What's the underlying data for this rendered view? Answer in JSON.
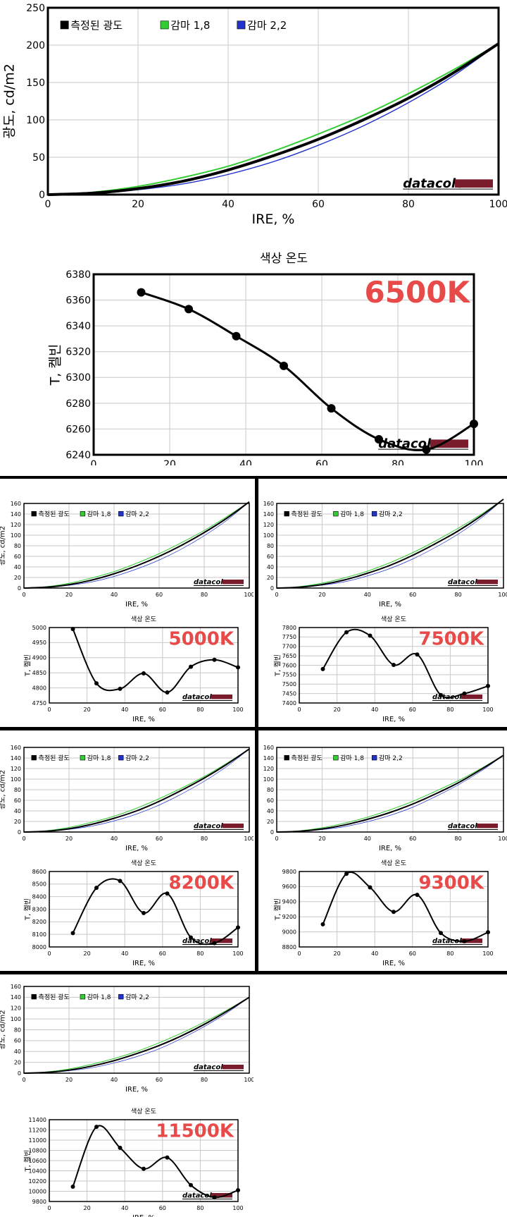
{
  "big_gamma": {
    "legend": [
      "측정된 광도",
      "감마 1,8",
      "감마 2,2"
    ],
    "ylabel": "광도, cd/m2",
    "xlabel": "IRE, %",
    "xticks": [
      "0",
      "20",
      "40",
      "60",
      "80",
      "100"
    ],
    "yticks": [
      "0",
      "50",
      "100",
      "150",
      "200",
      "250"
    ],
    "ymax": 250,
    "ypeak": 202,
    "logo": "datacolor"
  },
  "big_temp": {
    "title": "색상 온도",
    "ylabel": "T, 켈빈",
    "xlabel": "IRE, %",
    "label": "6500K",
    "xticks": [
      "0",
      "20",
      "40",
      "60",
      "80",
      "100"
    ],
    "yticks": [
      "6240",
      "6260",
      "6280",
      "6300",
      "6320",
      "6340",
      "6360",
      "6380"
    ],
    "ymin": 6240,
    "ymax": 6380,
    "logo": "datacolor"
  },
  "small_panels": [
    {
      "gamma": {
        "legend": [
          "측정된 광도",
          "감마 1,8",
          "감마 2,2"
        ],
        "ylabel": "광도, cd/m2",
        "xlabel": "IRE, %",
        "xticks": [
          "0",
          "20",
          "40",
          "60",
          "80",
          "100"
        ],
        "yticks": [
          "0",
          "20",
          "40",
          "60",
          "80",
          "100",
          "120",
          "140",
          "160"
        ],
        "ymax": 160,
        "ypeak": 163,
        "logo": "datacolor"
      },
      "temp": {
        "title": "색상 온도",
        "ylabel": "T, 켈빈",
        "xlabel": "IRE, %",
        "label": "5000K",
        "xticks": [
          "0",
          "20",
          "40",
          "60",
          "80",
          "100"
        ],
        "yticks": [
          "4750",
          "4800",
          "4850",
          "4900",
          "4950",
          "5000"
        ],
        "ymin": 4750,
        "ymax": 5000,
        "logo": "datacolor"
      }
    },
    {
      "gamma": {
        "legend": [
          "측정된 광도",
          "감마 1,8",
          "감마 2,2"
        ],
        "ylabel": "광도, cd/m2",
        "xlabel": "IRE, %",
        "xticks": [
          "0",
          "20",
          "40",
          "60",
          "80",
          "100"
        ],
        "yticks": [
          "0",
          "20",
          "40",
          "60",
          "80",
          "100",
          "120",
          "140",
          "160"
        ],
        "ymax": 160,
        "ypeak": 168,
        "logo": "datacolor"
      },
      "temp": {
        "title": "색상 온도",
        "ylabel": "T, 켈빈",
        "xlabel": "IRE, %",
        "label": "7500K",
        "xticks": [
          "0",
          "20",
          "40",
          "60",
          "80",
          "100"
        ],
        "yticks": [
          "7400",
          "7450",
          "7500",
          "7550",
          "7600",
          "7650",
          "7700",
          "7750",
          "7800"
        ],
        "ymin": 7400,
        "ymax": 7800,
        "logo": "datacolor"
      }
    },
    {
      "gamma": {
        "legend": [
          "측정된 광도",
          "감마 1,8",
          "감마 2,2"
        ],
        "ylabel": "광도, cd/m2",
        "xlabel": "IRE, %",
        "xticks": [
          "0",
          "20",
          "40",
          "60",
          "80",
          "100"
        ],
        "yticks": [
          "0",
          "20",
          "40",
          "60",
          "80",
          "100",
          "120",
          "140",
          "160"
        ],
        "ymax": 160,
        "ypeak": 157,
        "logo": "datacolor"
      },
      "temp": {
        "title": "색상 온도",
        "ylabel": "T, 켈빈",
        "xlabel": "IRE, %",
        "label": "8200K",
        "xticks": [
          "0",
          "20",
          "40",
          "60",
          "80",
          "100"
        ],
        "yticks": [
          "8000",
          "8100",
          "8200",
          "8300",
          "8400",
          "8500",
          "8600"
        ],
        "ymin": 8000,
        "ymax": 8600,
        "logo": "datacolor"
      }
    },
    {
      "gamma": {
        "legend": [
          "측정된 광도",
          "감마 1,8",
          "감마 2,2"
        ],
        "ylabel": "광도, cd/m2",
        "xlabel": "IRE, %",
        "xticks": [
          "0",
          "20",
          "40",
          "60",
          "80",
          "100"
        ],
        "yticks": [
          "0",
          "20",
          "40",
          "60",
          "80",
          "100",
          "120",
          "140",
          "160"
        ],
        "ymax": 160,
        "ypeak": 145,
        "logo": "datacolor"
      },
      "temp": {
        "title": "색상 온도",
        "ylabel": "T, 켈빈",
        "xlabel": "IRE, %",
        "label": "9300K",
        "xticks": [
          "0",
          "20",
          "40",
          "60",
          "80",
          "100"
        ],
        "yticks": [
          "8800",
          "9000",
          "9200",
          "9400",
          "9600",
          "9800"
        ],
        "ymin": 8800,
        "ymax": 9800,
        "logo": "datacolor"
      }
    },
    {
      "gamma": {
        "legend": [
          "측정된 광도",
          "감마 1,8",
          "감마 2,2"
        ],
        "ylabel": "광도, cd/m2",
        "xlabel": "IRE, %",
        "xticks": [
          "0",
          "20",
          "40",
          "60",
          "80",
          "100"
        ],
        "yticks": [
          "0",
          "20",
          "40",
          "60",
          "80",
          "100",
          "120",
          "140",
          "160"
        ],
        "ymax": 160,
        "ypeak": 140,
        "logo": "datacolor"
      },
      "temp": {
        "title": "색상 온도",
        "ylabel": "T, 켈빈",
        "xlabel": "IRE, %",
        "label": "11500K",
        "xticks": [
          "0",
          "20",
          "40",
          "60",
          "80",
          "100"
        ],
        "yticks": [
          "9800",
          "10000",
          "10200",
          "10400",
          "10600",
          "10800",
          "11000",
          "11200",
          "11400"
        ],
        "ymin": 9800,
        "ymax": 11400,
        "logo": "datacolor"
      }
    }
  ],
  "colors": {
    "measured": "#000000",
    "gamma18": "#33cc33",
    "gamma22": "#2233cc",
    "grid": "#c8c8c8",
    "temp_label": "#e84a4a",
    "logo_bar": "#7a1c2c",
    "divider": "#000000"
  },
  "chart_data": [
    {
      "type": "line",
      "title": "",
      "xlabel": "IRE, %",
      "ylabel": "광도, cd/m2",
      "xlim": [
        0,
        100
      ],
      "ylim": [
        0,
        250
      ],
      "x": [
        0,
        10,
        20,
        30,
        40,
        50,
        60,
        70,
        80,
        90,
        100
      ],
      "series": [
        {
          "name": "측정된 광도",
          "values": [
            0,
            2,
            8,
            18,
            33,
            52,
            74,
            100,
            129,
            163,
            202
          ]
        },
        {
          "name": "감마 1,8",
          "values": [
            0,
            3.2,
            11,
            23,
            38,
            58,
            81,
            106,
            135,
            167,
            202
          ]
        },
        {
          "name": "감마 2,2",
          "values": [
            0,
            1.3,
            6.5,
            14.3,
            27,
            44,
            66,
            92,
            123,
            159,
            202
          ]
        }
      ]
    },
    {
      "type": "line",
      "title": "색상 온도",
      "xlabel": "IRE, %",
      "ylabel": "T, 켈빈",
      "xlim": [
        0,
        100
      ],
      "ylim": [
        6240,
        6380
      ],
      "annotation": "6500K",
      "x": [
        12.5,
        25,
        37.5,
        50,
        62.5,
        75,
        87.5,
        100
      ],
      "series": [
        {
          "values": [
            6366,
            6353,
            6332,
            6309,
            6276,
            6252,
            6244,
            6264
          ]
        }
      ]
    },
    {
      "type": "line",
      "title": "",
      "xlabel": "IRE, %",
      "ylabel": "광도, cd/m2",
      "xlim": [
        0,
        100
      ],
      "ylim": [
        0,
        160
      ],
      "x": [
        0,
        10,
        20,
        30,
        40,
        50,
        60,
        70,
        80,
        90,
        100
      ],
      "series": [
        {
          "name": "측정된 광도",
          "values": [
            0,
            1.6,
            6.5,
            15,
            27,
            42,
            60,
            81,
            105,
            132,
            163
          ]
        },
        {
          "name": "감마 1,8",
          "values": [
            0,
            2.6,
            9,
            19,
            31,
            47,
            65,
            86,
            109,
            135,
            163
          ]
        },
        {
          "name": "감마 2,2",
          "values": [
            0,
            1.0,
            5.2,
            11.5,
            22,
            36,
            53,
            74,
            99,
            128,
            163
          ]
        }
      ]
    },
    {
      "type": "line",
      "title": "색상 온도",
      "xlabel": "IRE, %",
      "ylabel": "T, 켈빈",
      "xlim": [
        0,
        100
      ],
      "ylim": [
        4750,
        5000
      ],
      "annotation": "5000K",
      "x": [
        12.5,
        25,
        37.5,
        50,
        62.5,
        75,
        87.5,
        100
      ],
      "series": [
        {
          "values": [
            4995,
            4815,
            4797,
            4848,
            4785,
            4870,
            4893,
            4868
          ]
        }
      ]
    },
    {
      "type": "line",
      "title": "",
      "xlabel": "IRE, %",
      "ylabel": "광도, cd/m2",
      "xlim": [
        0,
        100
      ],
      "ylim": [
        0,
        160
      ],
      "x": [
        0,
        10,
        20,
        30,
        40,
        50,
        60,
        70,
        80,
        90,
        100
      ],
      "series": [
        {
          "name": "측정된 광도",
          "values": [
            0,
            1.7,
            6.7,
            15.5,
            28,
            43,
            62,
            84,
            108,
            136,
            168
          ]
        },
        {
          "name": "감마 1,8",
          "values": [
            0,
            2.7,
            9.3,
            19.5,
            32,
            48,
            67,
            89,
            113,
            139,
            168
          ]
        },
        {
          "name": "감마 2,2",
          "values": [
            0,
            1.1,
            5.4,
            12,
            23,
            37,
            55,
            77,
            102,
            132,
            168
          ]
        }
      ]
    },
    {
      "type": "line",
      "title": "색상 온도",
      "xlabel": "IRE, %",
      "ylabel": "T, 켈빈",
      "xlim": [
        0,
        100
      ],
      "ylim": [
        7400,
        7800
      ],
      "annotation": "7500K",
      "x": [
        12.5,
        25,
        37.5,
        50,
        62.5,
        75,
        87.5,
        100
      ],
      "series": [
        {
          "values": [
            7580,
            7775,
            7757,
            7602,
            7657,
            7442,
            7450,
            7490
          ]
        }
      ]
    },
    {
      "type": "line",
      "title": "",
      "xlabel": "IRE, %",
      "ylabel": "광도, cd/m2",
      "xlim": [
        0,
        100
      ],
      "ylim": [
        0,
        160
      ],
      "x": [
        0,
        10,
        20,
        30,
        40,
        50,
        60,
        70,
        80,
        90,
        100
      ],
      "series": [
        {
          "name": "측정된 광도",
          "values": [
            0,
            1.5,
            6.2,
            14.5,
            26,
            40,
            58,
            79,
            102,
            128,
            157
          ]
        },
        {
          "name": "감마 1,8",
          "values": [
            0,
            2.5,
            8.7,
            18.3,
            30,
            45,
            63,
            83,
            105,
            130,
            157
          ]
        },
        {
          "name": "감마 2,2",
          "values": [
            0,
            1.0,
            5.0,
            11.1,
            21,
            34,
            51,
            72,
            96,
            124,
            157
          ]
        }
      ]
    },
    {
      "type": "line",
      "title": "색상 온도",
      "xlabel": "IRE, %",
      "ylabel": "T, 켈빈",
      "xlim": [
        0,
        100
      ],
      "ylim": [
        8000,
        8600
      ],
      "annotation": "8200K",
      "x": [
        12.5,
        25,
        37.5,
        50,
        62.5,
        75,
        87.5,
        100
      ],
      "series": [
        {
          "values": [
            8110,
            8470,
            8525,
            8270,
            8425,
            8075,
            8030,
            8155
          ]
        }
      ]
    },
    {
      "type": "line",
      "title": "",
      "xlabel": "IRE, %",
      "ylabel": "광도, cd/m2",
      "xlim": [
        0,
        100
      ],
      "ylim": [
        0,
        160
      ],
      "x": [
        0,
        10,
        20,
        30,
        40,
        50,
        60,
        70,
        80,
        90,
        100
      ],
      "series": [
        {
          "name": "측정된 광도",
          "values": [
            0,
            1.4,
            5.8,
            13.4,
            24,
            37,
            53,
            72,
            93,
            118,
            145
          ]
        },
        {
          "name": "감마 1,8",
          "values": [
            0,
            2.3,
            8.0,
            16.9,
            28,
            42,
            58,
            77,
            97,
            120,
            145
          ]
        },
        {
          "name": "감마 2,2",
          "values": [
            0,
            0.9,
            4.6,
            10.2,
            19.5,
            31.5,
            47,
            67,
            89,
            115,
            145
          ]
        }
      ]
    },
    {
      "type": "line",
      "title": "색상 온도",
      "xlabel": "IRE, %",
      "ylabel": "T, 켈빈",
      "xlim": [
        0,
        100
      ],
      "ylim": [
        8800,
        9800
      ],
      "annotation": "9300K",
      "x": [
        12.5,
        25,
        37.5,
        50,
        62.5,
        75,
        87.5,
        100
      ],
      "series": [
        {
          "values": [
            9100,
            9770,
            9590,
            9265,
            9490,
            8985,
            8875,
            8995
          ]
        }
      ]
    },
    {
      "type": "line",
      "title": "",
      "xlabel": "IRE, %",
      "ylabel": "광도, cd/m2",
      "xlim": [
        0,
        100
      ],
      "ylim": [
        0,
        160
      ],
      "x": [
        0,
        10,
        20,
        30,
        40,
        50,
        60,
        70,
        80,
        90,
        100
      ],
      "series": [
        {
          "name": "측정된 광도",
          "values": [
            0,
            1.4,
            5.6,
            12.9,
            23,
            36,
            51,
            69,
            90,
            114,
            140
          ]
        },
        {
          "name": "감마 1,8",
          "values": [
            0,
            2.2,
            7.7,
            16.3,
            27,
            40,
            56,
            74,
            94,
            116,
            140
          ]
        },
        {
          "name": "감마 2,2",
          "values": [
            0,
            0.9,
            4.4,
            9.8,
            18.8,
            30.4,
            45,
            64,
            86,
            111,
            140
          ]
        }
      ]
    },
    {
      "type": "line",
      "title": "색상 온도",
      "xlabel": "IRE, %",
      "ylabel": "T, 켈빈",
      "xlim": [
        0,
        100
      ],
      "ylim": [
        9800,
        11400
      ],
      "annotation": "11500K",
      "x": [
        12.5,
        25,
        37.5,
        50,
        62.5,
        75,
        87.5,
        100
      ],
      "series": [
        {
          "values": [
            10090,
            11260,
            10850,
            10440,
            10660,
            10120,
            9880,
            10020
          ]
        }
      ]
    }
  ]
}
